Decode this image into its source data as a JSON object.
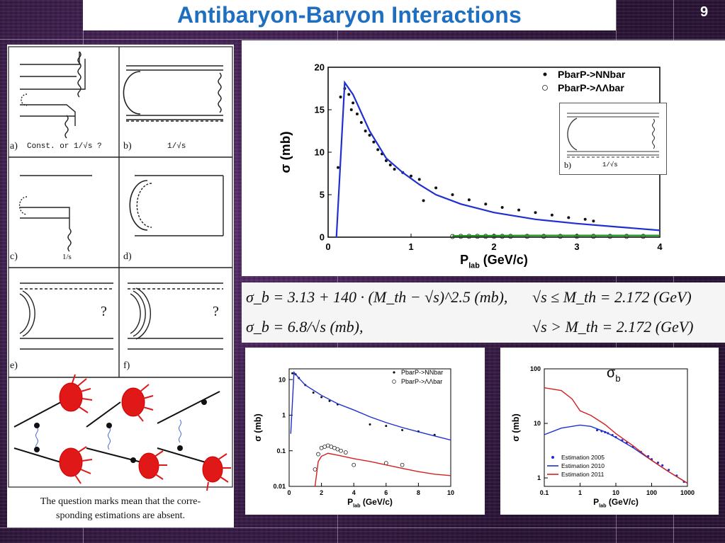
{
  "slide": {
    "title": "Antibaryon-Baryon Interactions",
    "page_number": "9"
  },
  "diagrams": {
    "labels": [
      "a)",
      "b)",
      "c)",
      "d)",
      "e)",
      "f)"
    ],
    "a_note": "Const. or 1/√s  ?",
    "b_note": "1/√s",
    "c_note": "1/s",
    "question_mark": "?",
    "caption_line1": "The question marks mean that the corre-",
    "caption_line2": "sponding estimations are absent."
  },
  "formula": {
    "line1_left": "σ_b = 3.13 + 140 · (M_th − √s)^2.5   (mb),",
    "line1_right": "√s ≤ M_th = 2.172   (GeV)",
    "line2_left": "σ_b = 6.8/√s   (mb),",
    "line2_right": "√s > M_th = 2.172   (GeV)"
  },
  "inset": {
    "label": "b)",
    "note": "1/√s"
  },
  "colors": {
    "title": "#1f6fc0",
    "blue_curve": "#1f2fd0",
    "green_curve": "#1a9a1a",
    "red_curve": "#d42020",
    "data_points": "#111111"
  },
  "chart_data": [
    {
      "type": "scatter",
      "xlabel": "P_lab (GeV/c)",
      "ylabel": "σ (mb)",
      "xlim": [
        0,
        4
      ],
      "ylim": [
        0,
        20
      ],
      "xticks": [
        "0",
        "1",
        "2",
        "3",
        "4"
      ],
      "yticks": [
        "0",
        "5",
        "10",
        "15",
        "20"
      ],
      "legend": [
        "PbarP->NNbar",
        "PbarP->ΛΛbar"
      ],
      "legend_position": "top-right",
      "series": [
        {
          "name": "PbarP->NNbar",
          "marker": "filled",
          "x": [
            0.12,
            0.15,
            0.2,
            0.25,
            0.28,
            0.3,
            0.35,
            0.4,
            0.45,
            0.5,
            0.55,
            0.6,
            0.65,
            0.7,
            0.75,
            0.8,
            0.9,
            1.0,
            1.1,
            1.15,
            1.3,
            1.5,
            1.7,
            1.9,
            2.1,
            2.3,
            2.5,
            2.7,
            2.9,
            3.1,
            3.2
          ],
          "y": [
            8.2,
            16.5,
            17.5,
            16.8,
            15.0,
            15.8,
            14.5,
            13.5,
            12.5,
            12.0,
            11.2,
            10.3,
            9.8,
            9.0,
            8.5,
            8.0,
            7.6,
            7.2,
            6.8,
            4.3,
            5.8,
            5.0,
            4.4,
            3.9,
            3.5,
            3.2,
            2.9,
            2.6,
            2.3,
            2.1,
            1.9
          ]
        },
        {
          "name": "PbarP->ΛΛbar",
          "marker": "open",
          "x": [
            1.5,
            1.6,
            1.7,
            1.8,
            1.9,
            2.0,
            2.1,
            2.2,
            2.4,
            2.6,
            2.8,
            3.0,
            3.2,
            3.4,
            3.6,
            3.8
          ],
          "y": [
            0.08,
            0.1,
            0.1,
            0.1,
            0.1,
            0.1,
            0.1,
            0.1,
            0.1,
            0.1,
            0.1,
            0.1,
            0.1,
            0.1,
            0.1,
            0.1
          ]
        },
        {
          "name": "",
          "type": "line",
          "color": "blue",
          "x": [
            0.1,
            0.2,
            0.3,
            0.5,
            0.7,
            0.9,
            1.1,
            1.3,
            1.6,
            2.0,
            2.5,
            3.0,
            3.5,
            4.0
          ],
          "y": [
            0,
            18.2,
            16.8,
            12.5,
            9.3,
            7.6,
            6.2,
            5.0,
            3.9,
            2.9,
            2.1,
            1.6,
            1.2,
            0.8
          ]
        },
        {
          "name": "",
          "type": "line",
          "color": "green",
          "x": [
            1.5,
            2.0,
            2.5,
            3.0,
            3.5,
            4.0
          ],
          "y": [
            0.15,
            0.18,
            0.2,
            0.2,
            0.2,
            0.2
          ]
        }
      ]
    },
    {
      "type": "line",
      "xlabel": "P_lab (GeV/c)",
      "ylabel": "σ (mb)",
      "xlim": [
        0,
        10
      ],
      "ylim": [
        0.01,
        20
      ],
      "yscale": "log",
      "xticks": [
        "0",
        "2",
        "4",
        "6",
        "8",
        "10"
      ],
      "yticks": [
        "0.01",
        "0.1",
        "1",
        "10"
      ],
      "legend": [
        "PbarP->NNbar",
        "PbarP->ΛΛbar"
      ],
      "legend_position": "top-right",
      "series": [
        {
          "name": "PbarP->NNbar",
          "marker": "filled",
          "x": [
            0.2,
            0.4,
            0.6,
            1.0,
            1.5,
            2.0,
            2.5,
            3.0,
            5.0,
            6.0,
            7.0,
            8.0,
            9.0
          ],
          "y": [
            15,
            14,
            11,
            7,
            4.3,
            3.2,
            2.5,
            2.0,
            0.55,
            0.5,
            0.38,
            0.35,
            0.28
          ]
        },
        {
          "name": "PbarP->ΛΛbar",
          "marker": "open",
          "x": [
            1.6,
            1.8,
            2.0,
            2.2,
            2.4,
            2.6,
            2.8,
            3.0,
            3.2,
            3.5,
            4.0,
            6.0,
            7.0
          ],
          "y": [
            0.03,
            0.08,
            0.12,
            0.13,
            0.14,
            0.13,
            0.12,
            0.11,
            0.1,
            0.09,
            0.04,
            0.045,
            0.04
          ]
        },
        {
          "name": "",
          "type": "line",
          "color": "blue",
          "x": [
            0.1,
            0.3,
            0.6,
            1.0,
            2.0,
            3.0,
            4.0,
            5.0,
            6.0,
            7.0,
            8.0,
            9.0,
            10.0
          ],
          "y": [
            0.3,
            16,
            11,
            7,
            3.6,
            2.1,
            1.4,
            0.9,
            0.62,
            0.45,
            0.34,
            0.26,
            0.2
          ]
        },
        {
          "name": "",
          "type": "line",
          "color": "red",
          "x": [
            1.6,
            1.8,
            2.0,
            2.4,
            3.0,
            4.0,
            5.0,
            6.0,
            7.0,
            8.0,
            9.0,
            10.0
          ],
          "y": [
            0.01,
            0.05,
            0.07,
            0.085,
            0.075,
            0.06,
            0.05,
            0.04,
            0.032,
            0.026,
            0.022,
            0.02
          ]
        }
      ]
    },
    {
      "type": "line",
      "title": "σb",
      "xlabel": "P_lab (GeV/c)",
      "ylabel": "σ (mb)",
      "xscale": "log",
      "yscale": "log",
      "xlim": [
        0.1,
        1000
      ],
      "ylim": [
        0.7,
        100
      ],
      "xticks": [
        "0.1",
        "1",
        "10",
        "100",
        "1000"
      ],
      "yticks": [
        "1",
        "10",
        "100"
      ],
      "legend_position": "bottom-left",
      "series": [
        {
          "name": "Estimation 2005",
          "marker": "filled",
          "color": "blue",
          "x": [
            3,
            4,
            5,
            6,
            8,
            10,
            15,
            20,
            30,
            50,
            80,
            100,
            150,
            200,
            300,
            500,
            800
          ],
          "y": [
            7.5,
            7.2,
            6.9,
            6.6,
            6.1,
            5.6,
            4.9,
            4.4,
            3.7,
            3.0,
            2.5,
            2.2,
            1.9,
            1.7,
            1.4,
            1.1,
            0.85
          ]
        },
        {
          "name": "Estimation 2010",
          "color": "blue",
          "x": [
            0.1,
            0.3,
            1.0,
            2.0,
            5.0,
            10.0,
            30.0,
            100.0,
            300.0,
            1000.0
          ],
          "y": [
            6.2,
            8.2,
            9.3,
            8.8,
            7.0,
            5.5,
            3.6,
            2.1,
            1.3,
            0.8
          ]
        },
        {
          "name": "Estimation 2011",
          "color": "red",
          "x": [
            0.1,
            0.3,
            0.6,
            1.0,
            2.0,
            5.0,
            10.0,
            30.0,
            100.0,
            300.0,
            1000.0
          ],
          "y": [
            45,
            40,
            28,
            17,
            14,
            9.5,
            6.5,
            3.9,
            2.1,
            1.3,
            0.8
          ]
        }
      ]
    }
  ]
}
